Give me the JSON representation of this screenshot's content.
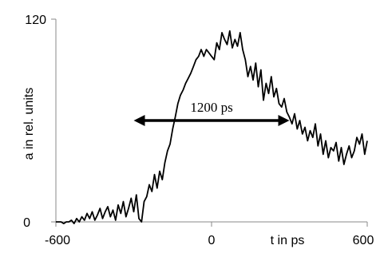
{
  "chart_data": {
    "type": "line",
    "title": "",
    "xlabel": "t in ps",
    "ylabel": "a in rel. units",
    "xlim": [
      -600,
      600
    ],
    "ylim": [
      0,
      120
    ],
    "x_ticks": [
      "-600",
      "0",
      "600"
    ],
    "y_ticks": [
      "0",
      "120"
    ],
    "grid": false,
    "legend": "none",
    "series": [
      {
        "x": [
          -600,
          -590,
          -580,
          -570,
          -560,
          -550,
          -540,
          -530,
          -520,
          -510,
          -500,
          -490,
          -480,
          -470,
          -460,
          -450,
          -440,
          -430,
          -420,
          -410,
          -400,
          -390,
          -380,
          -370,
          -360,
          -350,
          -340,
          -330,
          -320,
          -310,
          -300,
          -290,
          -280,
          -270,
          -260,
          -250,
          -240,
          -230,
          -220,
          -210,
          -200,
          -190,
          -180,
          -170,
          -160,
          -150,
          -140,
          -130,
          -120,
          -110,
          -100,
          -90,
          -80,
          -70,
          -60,
          -50,
          -40,
          -30,
          -20,
          -10,
          0,
          10,
          20,
          30,
          40,
          50,
          60,
          70,
          80,
          90,
          100,
          110,
          120,
          130,
          140,
          150,
          160,
          170,
          180,
          190,
          200,
          210,
          220,
          230,
          240,
          250,
          260,
          270,
          280,
          290,
          300,
          310,
          320,
          330,
          340,
          350,
          360,
          370,
          380,
          390,
          400,
          410,
          420,
          430,
          440,
          450,
          460,
          470,
          480,
          490,
          500,
          510,
          520,
          530,
          540,
          550,
          560,
          570,
          580,
          590,
          600
        ],
        "y": [
          0,
          0,
          0,
          -1,
          0,
          0,
          1,
          -1,
          2,
          0,
          3,
          1,
          5,
          2,
          6,
          1,
          4,
          8,
          2,
          6,
          9,
          3,
          7,
          1,
          10,
          5,
          12,
          3,
          8,
          14,
          6,
          16,
          2,
          0,
          12,
          15,
          22,
          18,
          28,
          20,
          30,
          25,
          35,
          42,
          46,
          55,
          62,
          70,
          75,
          78,
          82,
          85,
          88,
          92,
          96,
          98,
          102,
          98,
          102,
          100,
          98,
          96,
          106,
          102,
          112,
          108,
          105,
          113,
          103,
          108,
          104,
          112,
          102,
          96,
          86,
          92,
          84,
          94,
          80,
          90,
          72,
          82,
          76,
          86,
          74,
          79,
          70,
          68,
          73,
          65,
          62,
          58,
          64,
          55,
          60,
          52,
          56,
          48,
          54,
          50,
          58,
          45,
          52,
          40,
          48,
          38,
          44,
          42,
          47,
          36,
          44,
          34,
          40,
          45,
          38,
          42,
          50,
          46,
          52,
          40,
          48
        ],
        "name": ""
      }
    ],
    "annotation": {
      "label": "1200 ps",
      "x_start": -300,
      "x_end": 300,
      "y": 60
    }
  }
}
